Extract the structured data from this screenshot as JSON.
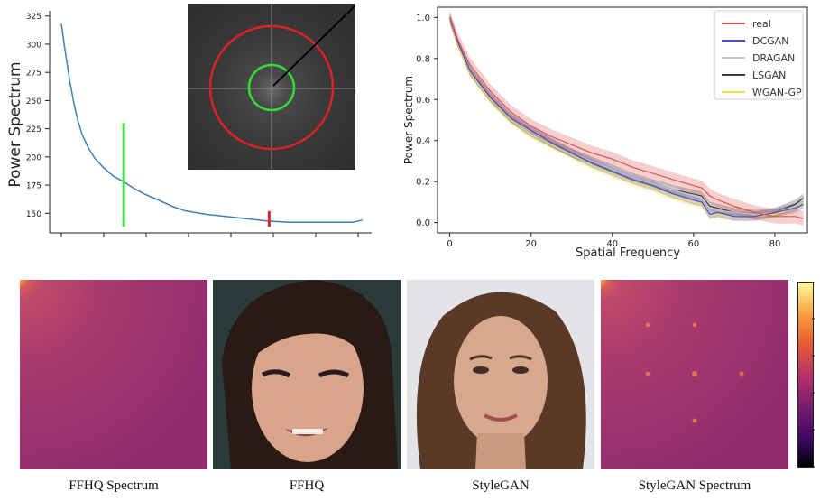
{
  "left_chart": {
    "ylabel": "Power Spectrum",
    "colors": {
      "curve": "#3f7fb8",
      "green_marker": "#44dd44",
      "red_marker": "#d62728"
    },
    "chart_data": {
      "type": "line",
      "ylim": [
        135,
        328
      ],
      "yticks": [
        "325",
        "300",
        "275",
        "250",
        "225",
        "200",
        "175",
        "150"
      ],
      "ytick_values": [
        325,
        300,
        275,
        250,
        225,
        200,
        175,
        150
      ],
      "x": [
        0,
        2,
        4,
        6,
        8,
        10,
        13,
        16,
        20,
        25,
        30,
        35,
        40,
        45,
        50,
        55,
        60,
        70,
        80,
        90,
        100,
        110,
        120,
        130,
        140,
        145
      ],
      "values": [
        318,
        292,
        268,
        248,
        232,
        220,
        208,
        199,
        191,
        183,
        178,
        172,
        167,
        163,
        159,
        155,
        152,
        149,
        147,
        145,
        143,
        142,
        142,
        142,
        142,
        144
      ],
      "markers": [
        {
          "x": 30,
          "y_from": 138,
          "y_to": 230,
          "color": "#44dd44"
        },
        {
          "x": 100,
          "y_from": 138,
          "y_to": 152,
          "color": "#d62728"
        }
      ]
    }
  },
  "right_chart": {
    "xlabel": "Spatial Frequency",
    "ylabel": "Power Spectrum",
    "chart_data": {
      "type": "line",
      "xlim": [
        -3,
        88
      ],
      "ylim": [
        -0.05,
        1.05
      ],
      "xticks": [
        "0",
        "20",
        "40",
        "60",
        "80"
      ],
      "xtick_values": [
        0,
        20,
        40,
        60,
        80
      ],
      "yticks": [
        "1.0",
        "0.8",
        "0.6",
        "0.4",
        "0.2",
        "0.0"
      ],
      "ytick_values": [
        1.0,
        0.8,
        0.6,
        0.4,
        0.2,
        0.0
      ],
      "x": [
        0,
        2,
        5,
        10,
        15,
        20,
        25,
        30,
        35,
        40,
        45,
        50,
        55,
        60,
        62,
        64,
        66,
        70,
        75,
        80,
        85,
        87
      ],
      "legend_position": "top-right",
      "series": [
        {
          "name": "real",
          "color": "#d9534f",
          "values": [
            1.0,
            0.89,
            0.77,
            0.64,
            0.54,
            0.47,
            0.42,
            0.38,
            0.34,
            0.31,
            0.27,
            0.24,
            0.21,
            0.18,
            0.17,
            0.13,
            0.11,
            0.08,
            0.05,
            0.03,
            0.03,
            0.02
          ]
        },
        {
          "name": "DCGAN",
          "color": "#4a4acd",
          "values": [
            1.0,
            0.88,
            0.74,
            0.61,
            0.51,
            0.45,
            0.39,
            0.34,
            0.29,
            0.25,
            0.21,
            0.18,
            0.14,
            0.11,
            0.1,
            0.04,
            0.05,
            0.03,
            0.03,
            0.05,
            0.07,
            0.09
          ]
        },
        {
          "name": "DRAGAN",
          "color": "#c8c8c8",
          "values": [
            1.0,
            0.88,
            0.74,
            0.61,
            0.51,
            0.44,
            0.39,
            0.34,
            0.3,
            0.26,
            0.22,
            0.19,
            0.16,
            0.13,
            0.12,
            0.07,
            0.06,
            0.05,
            0.04,
            0.05,
            0.08,
            0.11
          ]
        },
        {
          "name": "LSGAN",
          "color": "#3a3a3a",
          "values": [
            1.0,
            0.88,
            0.74,
            0.61,
            0.51,
            0.44,
            0.39,
            0.34,
            0.3,
            0.26,
            0.22,
            0.19,
            0.16,
            0.14,
            0.13,
            0.08,
            0.07,
            0.05,
            0.04,
            0.05,
            0.09,
            0.12
          ]
        },
        {
          "name": "WGAN-GP",
          "color": "#f0e040",
          "values": [
            1.0,
            0.87,
            0.73,
            0.6,
            0.5,
            0.43,
            0.38,
            0.33,
            0.28,
            0.24,
            0.2,
            0.17,
            0.13,
            0.1,
            0.09,
            0.04,
            0.04,
            0.03,
            0.03,
            0.04,
            0.07,
            0.1
          ]
        }
      ]
    }
  },
  "bottom": {
    "panels": [
      {
        "caption": "FFHQ Spectrum",
        "kind": "spectrum"
      },
      {
        "caption": "FFHQ",
        "kind": "photo"
      },
      {
        "caption": "StyleGAN",
        "kind": "photo"
      },
      {
        "caption": "StyleGAN Spectrum",
        "kind": "spectrum"
      }
    ],
    "colorbar": {
      "colors": [
        "#fbfc9d",
        "#f9a03f",
        "#e55c30",
        "#b8336a",
        "#7d1d6c",
        "#420a68",
        "#000004"
      ]
    }
  }
}
